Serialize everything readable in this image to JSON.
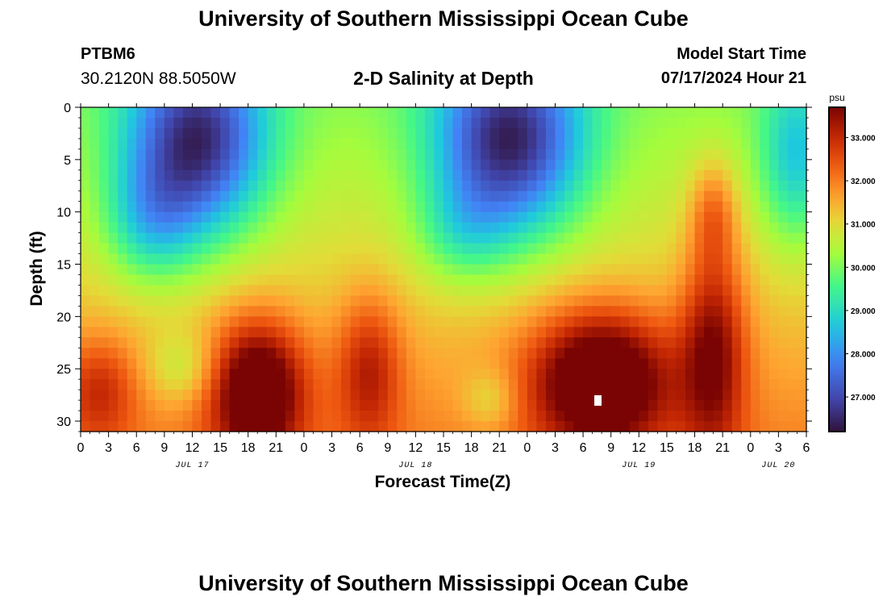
{
  "header": {
    "title_top": "University of Southern Mississippi Ocean Cube",
    "title_bottom": "University of Southern Mississippi Ocean Cube",
    "station": "PTBM6",
    "coords": "30.2120N  88.5050W",
    "subtitle": "2-D Salinity at Depth",
    "start_label": "Model Start Time",
    "start_value": "07/17/2024 Hour 21"
  },
  "chart_data": {
    "type": "heatmap",
    "title": "2-D Salinity at Depth",
    "xlabel": "Forecast Time(Z)",
    "ylabel": "Depth (ft)",
    "x_tick_labels": [
      "0",
      "3",
      "6",
      "9",
      "12",
      "15",
      "18",
      "21",
      "0",
      "3",
      "6",
      "9",
      "12",
      "15",
      "18",
      "21",
      "0",
      "3",
      "6",
      "9",
      "12",
      "15",
      "18",
      "21",
      "0",
      "3",
      "6"
    ],
    "date_labels": [
      {
        "label": "JUL 17",
        "hour": 12
      },
      {
        "label": "JUL 18",
        "hour": 36
      },
      {
        "label": "JUL 19",
        "hour": 60
      },
      {
        "label": "JUL 20",
        "hour": 75
      }
    ],
    "xlim_hours": [
      0,
      78
    ],
    "y_ticks": [
      0,
      5,
      10,
      15,
      20,
      25,
      30
    ],
    "ylim_ft": [
      0,
      31
    ],
    "colorbar": {
      "unit": "psu",
      "ticks": [
        "33.000",
        "32.000",
        "31.000",
        "30.000",
        "29.000",
        "28.000",
        "27.000"
      ],
      "vmin": 26.2,
      "vmax": 33.7
    },
    "features": [
      {
        "description": "fresh surface lens",
        "hour": 13,
        "depth": 3.5,
        "value": 26.5
      },
      {
        "description": "fresh surface lens",
        "hour": 46,
        "depth": 3.5,
        "value": 26.4
      },
      {
        "description": "fresh surface lens",
        "hour": 76,
        "depth": 6,
        "value": 28.7
      },
      {
        "description": "salty bottom water",
        "hour": 18.5,
        "depth": 27,
        "value": 33.6
      },
      {
        "description": "salty bottom water",
        "hour": 31,
        "depth": 26,
        "value": 32.6
      },
      {
        "description": "salty bottom water",
        "hour": 55.5,
        "depth": 27,
        "value": 33.6
      },
      {
        "description": "salty bottom water",
        "hour": 68,
        "depth": 24,
        "value": 32.8
      }
    ]
  }
}
